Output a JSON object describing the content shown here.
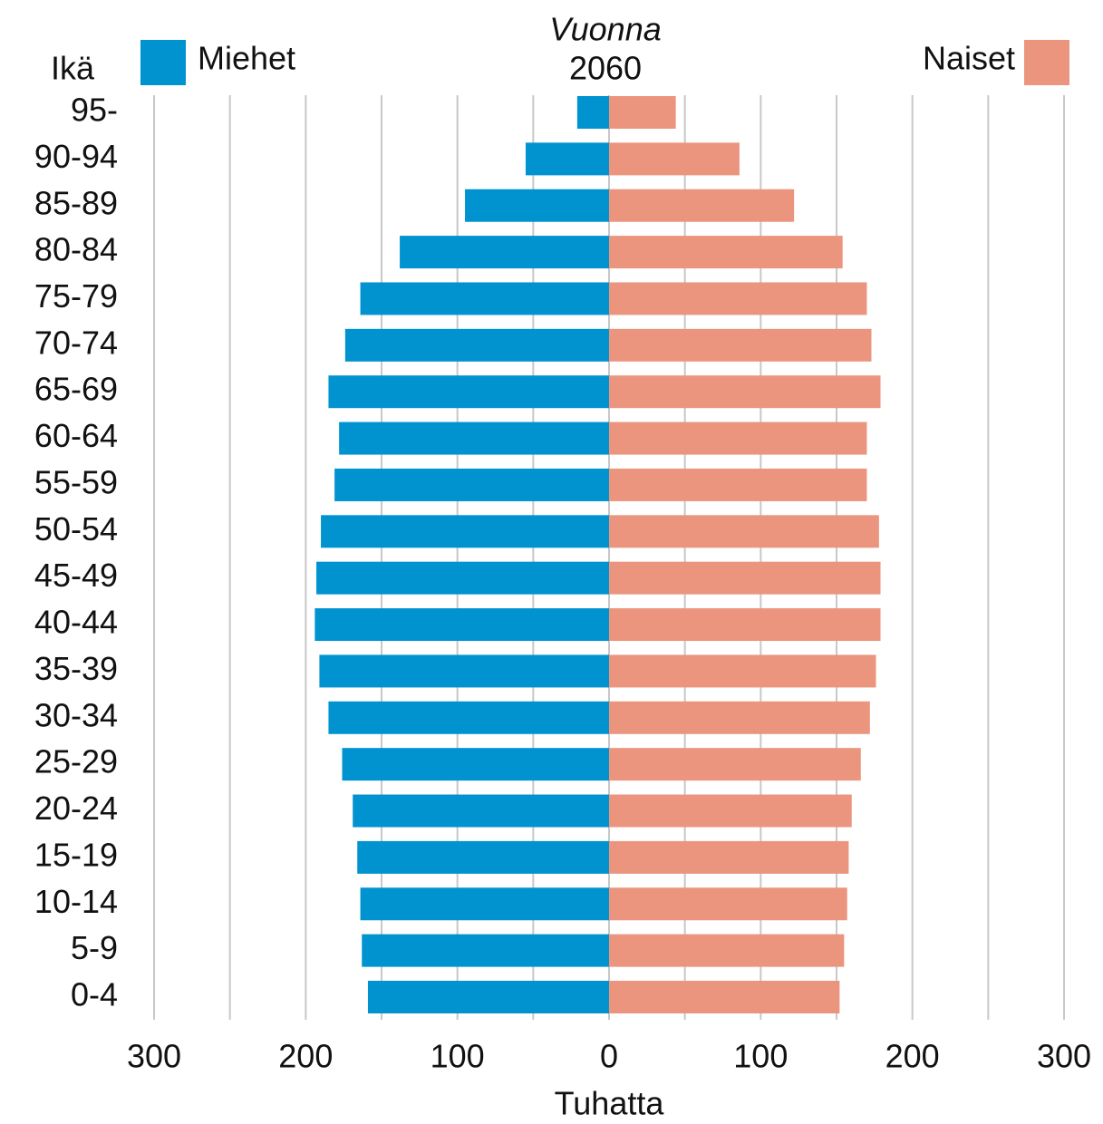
{
  "chart_data": {
    "type": "pyramid",
    "age_label": "Ikä",
    "subtitle": "Vuonna",
    "title": "2060",
    "xlabel": "Tuhatta",
    "categories": [
      "95-",
      "90-94",
      "85-89",
      "80-84",
      "75-79",
      "70-74",
      "65-69",
      "60-64",
      "55-59",
      "50-54",
      "45-49",
      "40-44",
      "35-39",
      "30-34",
      "25-29",
      "20-24",
      "15-19",
      "10-14",
      "5-9",
      "0-4"
    ],
    "series": [
      {
        "name": "Miehet",
        "color": "#0093d0",
        "side": "left",
        "values": [
          21,
          55,
          95,
          138,
          164,
          174,
          185,
          178,
          181,
          190,
          193,
          194,
          191,
          185,
          176,
          169,
          166,
          164,
          163,
          159
        ]
      },
      {
        "name": "Naiset",
        "color": "#ec957e",
        "side": "right",
        "values": [
          44,
          86,
          122,
          154,
          170,
          173,
          179,
          170,
          170,
          178,
          179,
          179,
          176,
          172,
          166,
          160,
          158,
          157,
          155,
          152
        ]
      }
    ],
    "xlim": [
      -300,
      300
    ],
    "xticks": [
      {
        "value": -300,
        "label": "300"
      },
      {
        "value": -200,
        "label": "200"
      },
      {
        "value": -100,
        "label": "100"
      },
      0,
      100,
      200,
      300
    ],
    "xminor": [
      -250,
      -150,
      -50,
      50,
      150,
      250
    ],
    "grid": true
  }
}
